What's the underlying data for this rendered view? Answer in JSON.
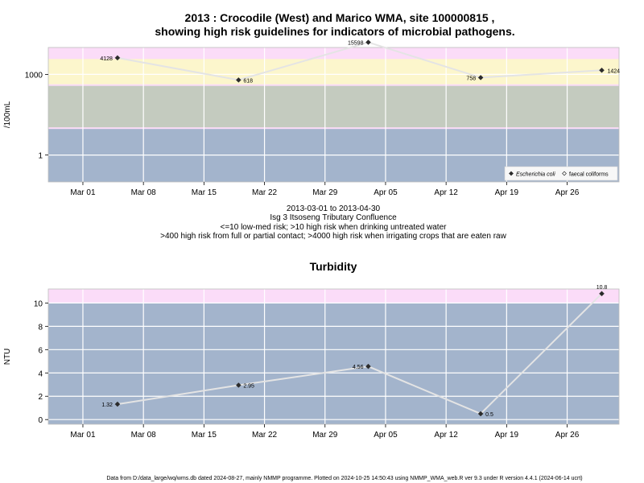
{
  "figure": {
    "title_line1": "2013 : Crocodile (West) and Marico WMA, site 100000815 ,",
    "title_line2": "showing high risk guidelines for indicators of microbial pathogens.",
    "info_lines": [
      "2013-03-01 to 2013-04-30",
      "Isg 3 Itsoseng Tributary Confluence",
      "<=10 low-med risk; >10 high risk when drinking untreated water",
      ">400 high risk from full or partial contact; >4000 high risk when irrigating crops that are eaten raw"
    ],
    "footer": "Data from D:/data_large/wq/wms.db dated 2024-08-27, mainly NMMP programme. Plotted on 2024-10-25 14:50:43 using NMMP_WMA_web.R ver 9.3 under R version 4.4.1 (2024-06-14 ucrt)"
  },
  "chart_data": [
    {
      "type": "line",
      "title": "",
      "ylabel": "/100mL",
      "yscale": "log10",
      "ylim": [
        0.1,
        10000
      ],
      "yticks": [
        1,
        1000
      ],
      "ytick_labels": [
        "1",
        "1000"
      ],
      "xlim": [
        "2013-02-25",
        "2013-05-02"
      ],
      "xticks": [
        "2013-03-01",
        "2013-03-08",
        "2013-03-15",
        "2013-03-22",
        "2013-03-29",
        "2013-04-05",
        "2013-04-12",
        "2013-04-19",
        "2013-04-26"
      ],
      "xtick_labels": [
        "Mar 01",
        "Mar 08",
        "Mar 15",
        "Mar 22",
        "Mar 29",
        "Apr 05",
        "Apr 12",
        "Apr 19",
        "Apr 26"
      ],
      "bands": [
        {
          "from": 0.1,
          "to": 10,
          "color": "#a3b4cc"
        },
        {
          "from": 10,
          "to": 400,
          "color": "#c4cbbf"
        },
        {
          "from": 400,
          "to": 4000,
          "color": "#fcf6cc"
        },
        {
          "from": 4000,
          "to": 10000,
          "color": "#fbdcf8"
        }
      ],
      "band_boundary_color": "#fbdcf8",
      "grid": true,
      "line_color": "#e4e4e4",
      "series": [
        {
          "name": "Escherichia coli",
          "marker": "filled-diamond",
          "x": [
            "2013-03-05",
            "2013-03-19",
            "2013-04-03",
            "2013-04-16",
            "2013-04-30"
          ],
          "y": [
            4128,
            618,
            15598,
            758,
            1424
          ],
          "labels": [
            "4128",
            "618",
            "15598",
            "758",
            "1424"
          ]
        }
      ],
      "legend": {
        "placement": "bottom-right",
        "entries": [
          {
            "label": "Escherichia coli",
            "marker": "filled-diamond",
            "italic": true
          },
          {
            "label": "faecal coliforms",
            "marker": "open-diamond",
            "italic": false
          }
        ]
      }
    },
    {
      "type": "line",
      "title": "Turbidity",
      "ylabel": "NTU",
      "ylim": [
        -0.4,
        11.2
      ],
      "yticks": [
        0,
        2,
        4,
        6,
        8,
        10
      ],
      "ytick_labels": [
        "0",
        "2",
        "4",
        "6",
        "8",
        "10"
      ],
      "xlim": [
        "2013-02-25",
        "2013-05-02"
      ],
      "xticks": [
        "2013-03-01",
        "2013-03-08",
        "2013-03-15",
        "2013-03-22",
        "2013-03-29",
        "2013-04-05",
        "2013-04-12",
        "2013-04-19",
        "2013-04-26"
      ],
      "xtick_labels": [
        "Mar 01",
        "Mar 08",
        "Mar 15",
        "Mar 22",
        "Mar 29",
        "Apr 05",
        "Apr 12",
        "Apr 19",
        "Apr 26"
      ],
      "bands": [
        {
          "from": -0.4,
          "to": 10,
          "color": "#a3b4cc"
        },
        {
          "from": 10,
          "to": 11.2,
          "color": "#fbdcf8"
        }
      ],
      "grid": true,
      "line_color": "#e4e4e4",
      "series": [
        {
          "marker": "filled-diamond",
          "x": [
            "2013-03-05",
            "2013-03-19",
            "2013-04-03",
            "2013-04-16",
            "2013-04-30"
          ],
          "y": [
            1.32,
            2.95,
            4.56,
            0.5,
            10.8
          ],
          "labels": [
            "1.32",
            "2.95",
            "4.56",
            "0.5",
            "10.8"
          ]
        }
      ]
    }
  ]
}
